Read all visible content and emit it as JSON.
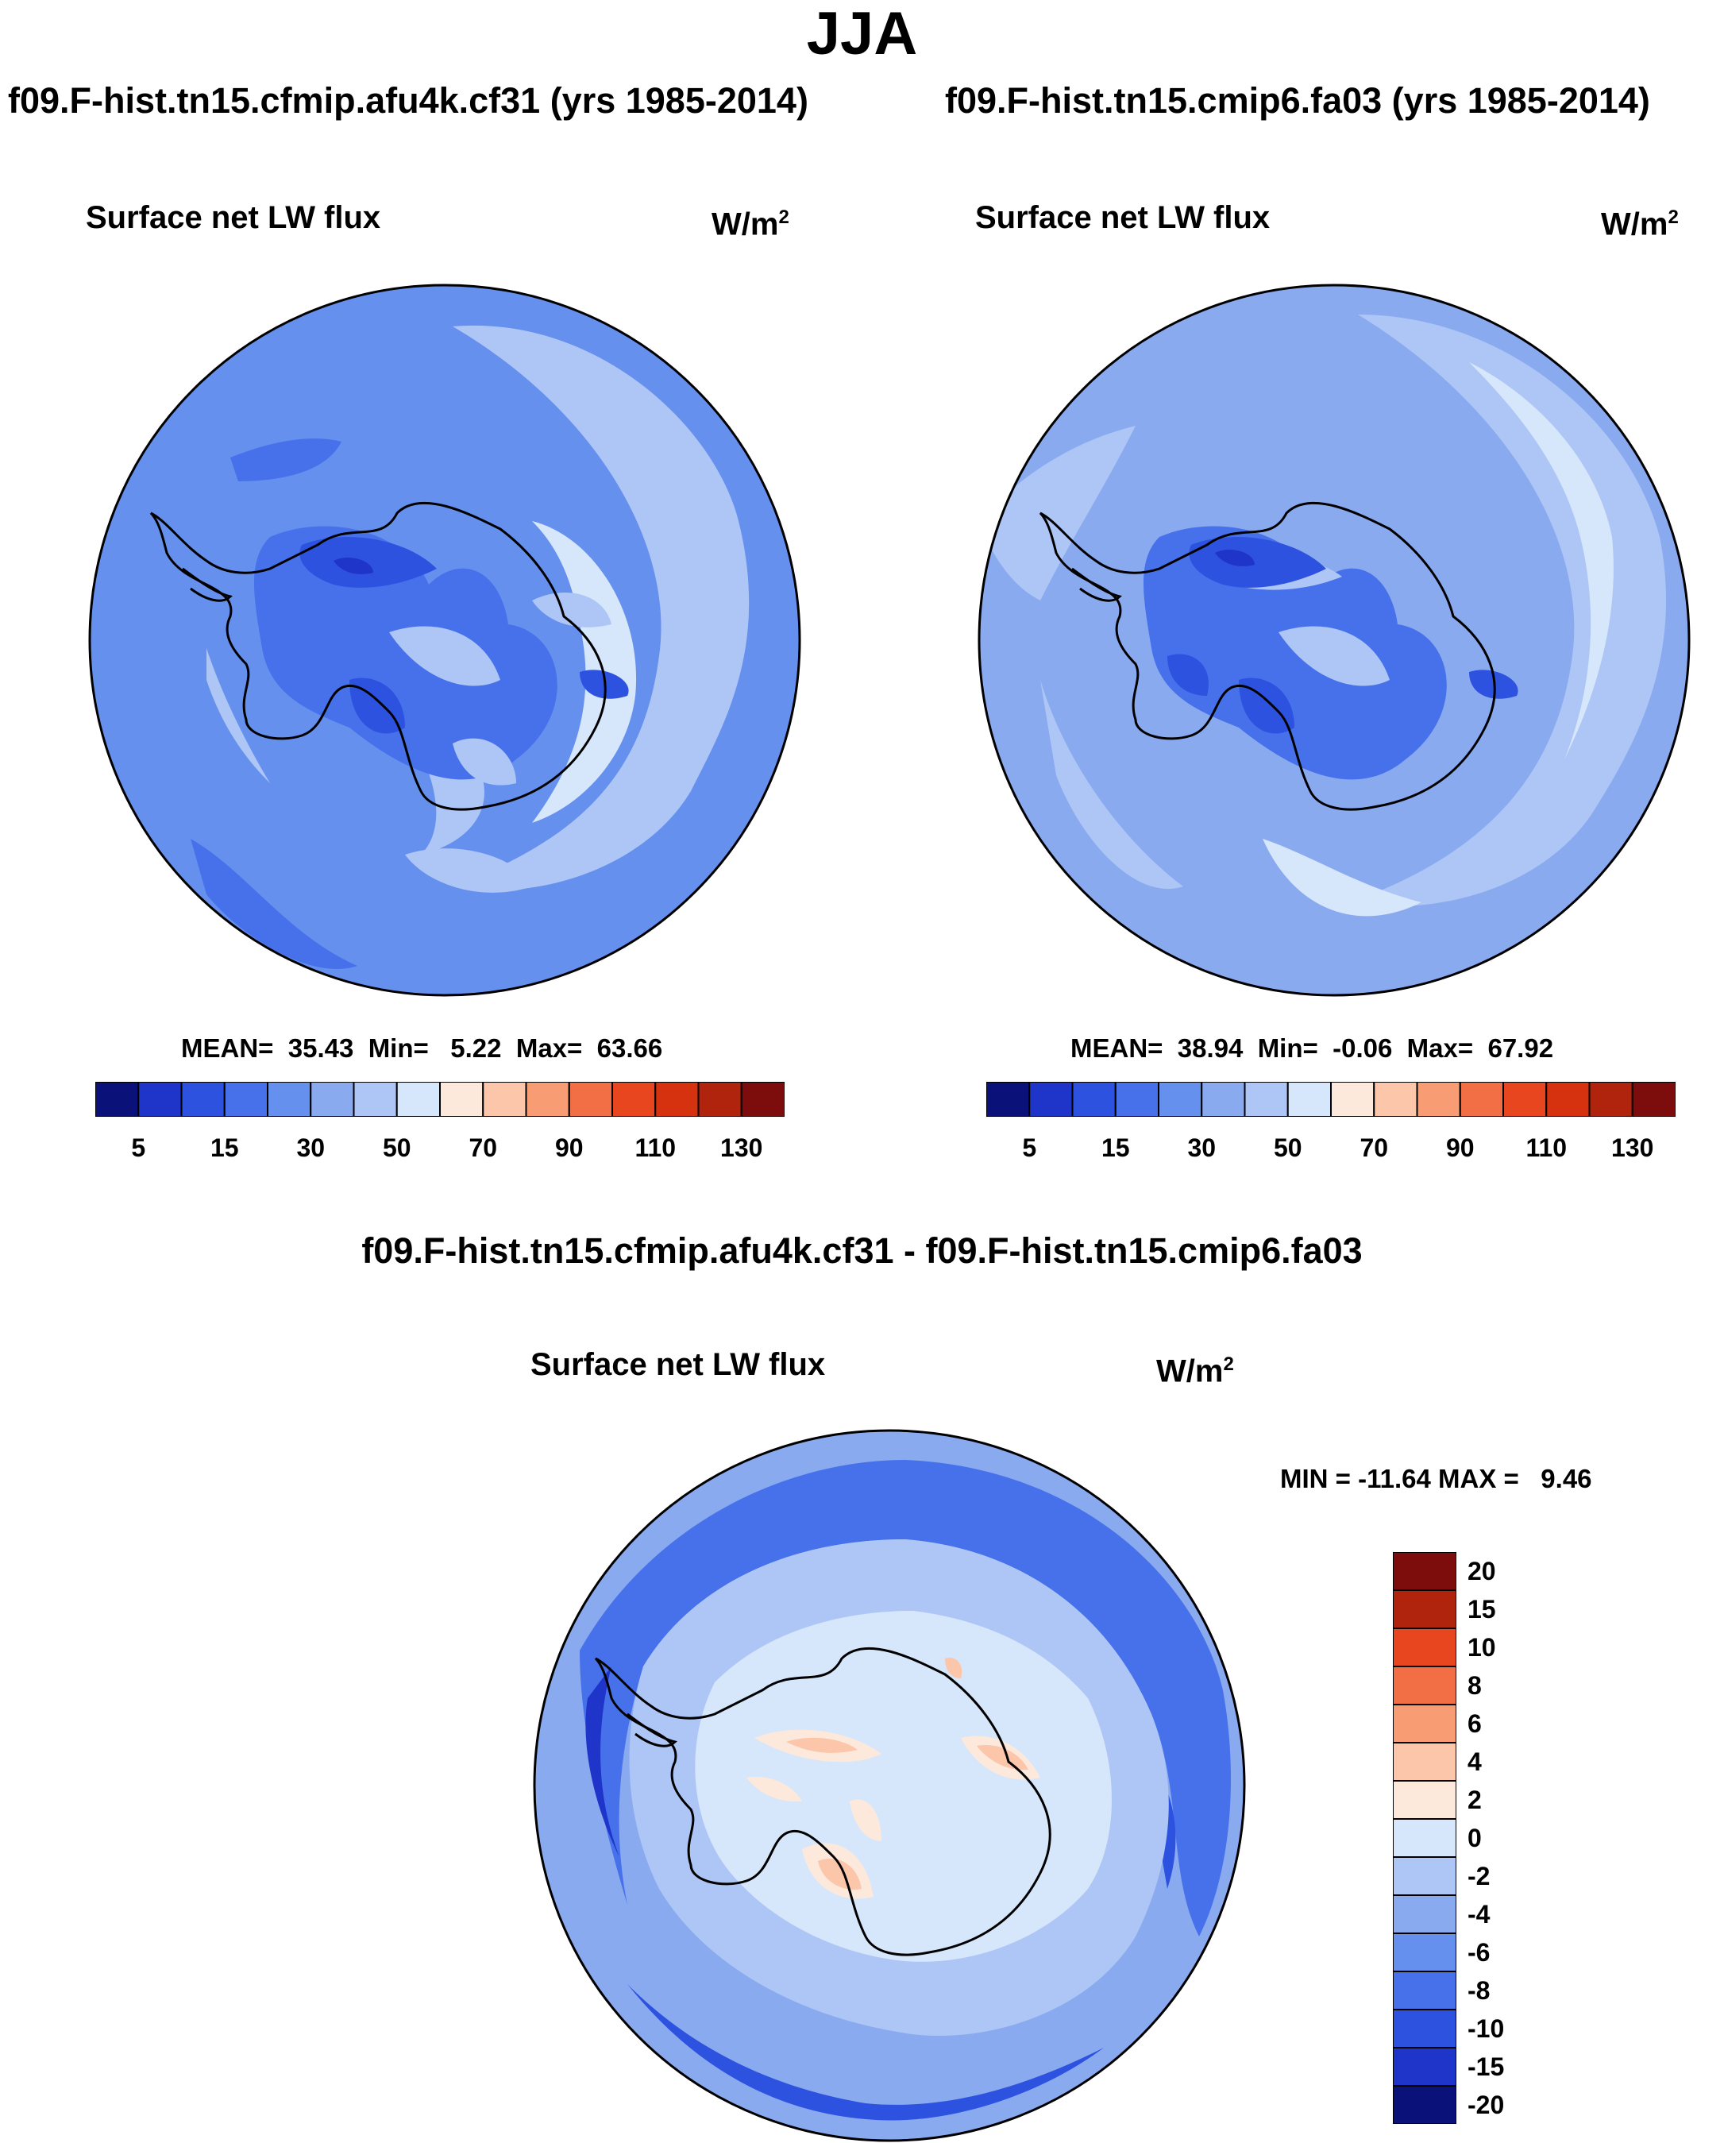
{
  "page": {
    "season": "JJA",
    "left_run_title": "f09.F-hist.tn15.cfmip.afu4k.cf31 (yrs 1985-2014)",
    "right_run_title": "f09.F-hist.tn15.cmip6.fa03 (yrs 1985-2014)",
    "diff_title": "f09.F-hist.tn15.cfmip.afu4k.cf31 - f09.F-hist.tn15.cmip6.fa03"
  },
  "panels": {
    "left": {
      "variable": "Surface net LW flux",
      "units": "W/m",
      "units_exp": "2",
      "stats": "MEAN=  35.43  Min=   5.22  Max=  63.66",
      "mean": 35.43,
      "min": 5.22,
      "max": 63.66
    },
    "right": {
      "variable": "Surface net LW flux",
      "units": "W/m",
      "units_exp": "2",
      "stats": "MEAN=  38.94  Min=  -0.06  Max=  67.92",
      "mean": 38.94,
      "min": -0.06,
      "max": 67.92
    },
    "diff": {
      "variable": "Surface net LW flux",
      "units": "W/m",
      "units_exp": "2",
      "stats": "MIN = -11.64 MAX =   9.46",
      "min": -11.64,
      "max": 9.46
    }
  },
  "colorbars": {
    "abs": {
      "colors": [
        "#0a127a",
        "#1f34c8",
        "#2d52e0",
        "#4671ea",
        "#6690ee",
        "#8aaaf0",
        "#aec6f6",
        "#d6e6fb",
        "#fde9dc",
        "#fbc6aa",
        "#f89c74",
        "#f26e45",
        "#e8461f",
        "#d63210",
        "#b0240e",
        "#7d0c0c"
      ],
      "tick_labels": [
        "5",
        "15",
        "30",
        "50",
        "70",
        "90",
        "110",
        "130"
      ]
    },
    "diff": {
      "colors": [
        "#7d0c0c",
        "#b0240e",
        "#e8461f",
        "#f26e45",
        "#f89c74",
        "#fbc6aa",
        "#fde9dc",
        "#d6e6fb",
        "#aec6f6",
        "#8aaaf0",
        "#6690ee",
        "#4671ea",
        "#2d52e0",
        "#1f34c8",
        "#0a127a"
      ],
      "tick_labels": [
        "20",
        "15",
        "10",
        "8",
        "6",
        "4",
        "2",
        "0",
        "-2",
        "-4",
        "-6",
        "-8",
        "-10",
        "-15",
        "-20"
      ]
    }
  },
  "map_colors": {
    "ocean_abs_left": "#6690ee",
    "ocean_abs_right": "#8aaaf0",
    "ocean_diff": "#8aaaf0",
    "continent_low": "#4671ea",
    "light": "#aec6f6",
    "lighter": "#d6e6fb",
    "dark": "#2d52e0",
    "darker": "#1f34c8",
    "pos1": "#fde9dc",
    "pos2": "#fbc6aa",
    "pos3": "#f89c74",
    "coast": "#000000"
  }
}
